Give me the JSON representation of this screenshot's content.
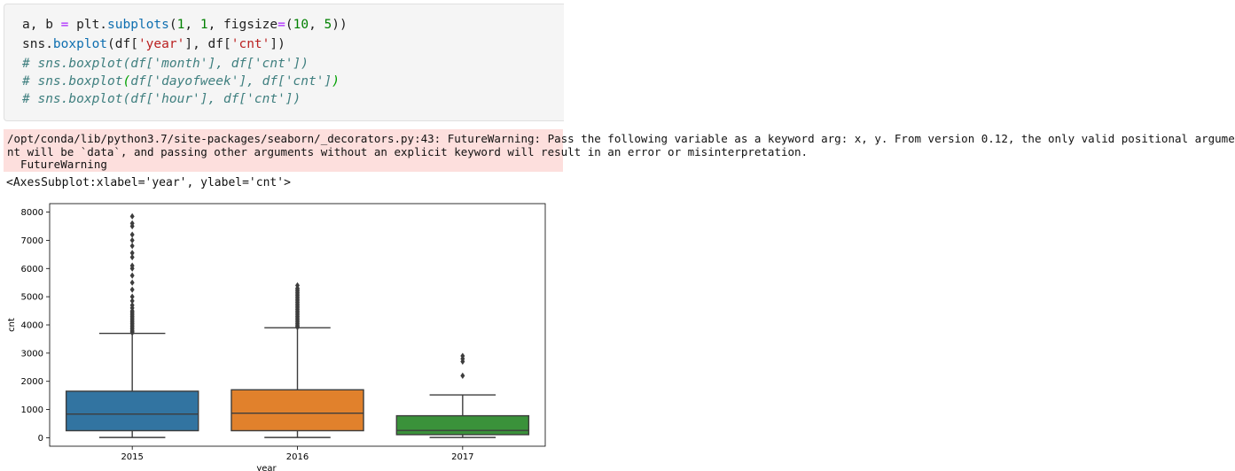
{
  "code_cell": {
    "line1": {
      "a": "a, b ",
      "op": "=",
      "b": " plt.",
      "fn": "subplots",
      "c": "(",
      "n1": "1",
      "d": ", ",
      "n2": "1",
      "e": ", figsize",
      "op2": "=",
      "f": "(",
      "n3": "10",
      "g": ", ",
      "n4": "5",
      "h": "))"
    },
    "line2": {
      "a": "sns.",
      "fn": "boxplot",
      "b": "(df[",
      "s1": "'year'",
      "c": "], df[",
      "s2": "'cnt'",
      "d": "])"
    },
    "line3": "# sns.boxplot(df['month'], df['cnt'])",
    "line4a": "# sns.boxplot",
    "line4b": "(",
    "line4c": "df['dayofweek'], df['cnt']",
    "line4d": ")",
    "line5": "# sns.boxplot(df['hour'], df['cnt'])"
  },
  "stderr": {
    "line1": "/opt/conda/lib/python3.7/site-packages/seaborn/_decorators.py:43: FutureWarning: Pass the following variable as a keyword arg: x, y. From version 0.12, the only valid positional argume",
    "line2": "nt will be `data`, and passing other arguments without an explicit keyword will result in an error or misinterpretation.",
    "line3": "  FutureWarning"
  },
  "output_text": "<AxesSubplot:xlabel='year', ylabel='cnt'>",
  "chart_data": {
    "type": "box",
    "categories": [
      "2015",
      "2016",
      "2017"
    ],
    "xlabel": "year",
    "ylabel": "cnt",
    "ylim": [
      -300,
      8300
    ],
    "yticks": [
      0,
      1000,
      2000,
      3000,
      4000,
      5000,
      6000,
      7000,
      8000
    ],
    "grid": false,
    "series": [
      {
        "category": "2015",
        "color": "#3274a1",
        "min": 10,
        "q1": 250,
        "median": 840,
        "q3": 1650,
        "max": 3700,
        "outliers": [
          3720,
          3760,
          3800,
          3850,
          3900,
          3950,
          4000,
          4050,
          4100,
          4150,
          4200,
          4250,
          4300,
          4350,
          4400,
          4450,
          4500,
          4600,
          4700,
          4850,
          5000,
          5250,
          5500,
          5750,
          6000,
          6100,
          6400,
          6550,
          6800,
          7000,
          7200,
          7500,
          7600,
          7850
        ]
      },
      {
        "category": "2016",
        "color": "#e1812c",
        "min": 10,
        "q1": 250,
        "median": 870,
        "q3": 1700,
        "max": 3900,
        "outliers": [
          3920,
          3960,
          4000,
          4050,
          4100,
          4150,
          4200,
          4250,
          4300,
          4350,
          4400,
          4450,
          4500,
          4550,
          4600,
          4650,
          4700,
          4750,
          4800,
          4850,
          4900,
          4950,
          5000,
          5050,
          5100,
          5150,
          5200,
          5250,
          5300,
          5400
        ]
      },
      {
        "category": "2017",
        "color": "#3a923a",
        "min": 10,
        "q1": 110,
        "median": 260,
        "q3": 780,
        "max": 1520,
        "outliers": [
          2200,
          2700,
          2800,
          2900
        ]
      }
    ]
  }
}
